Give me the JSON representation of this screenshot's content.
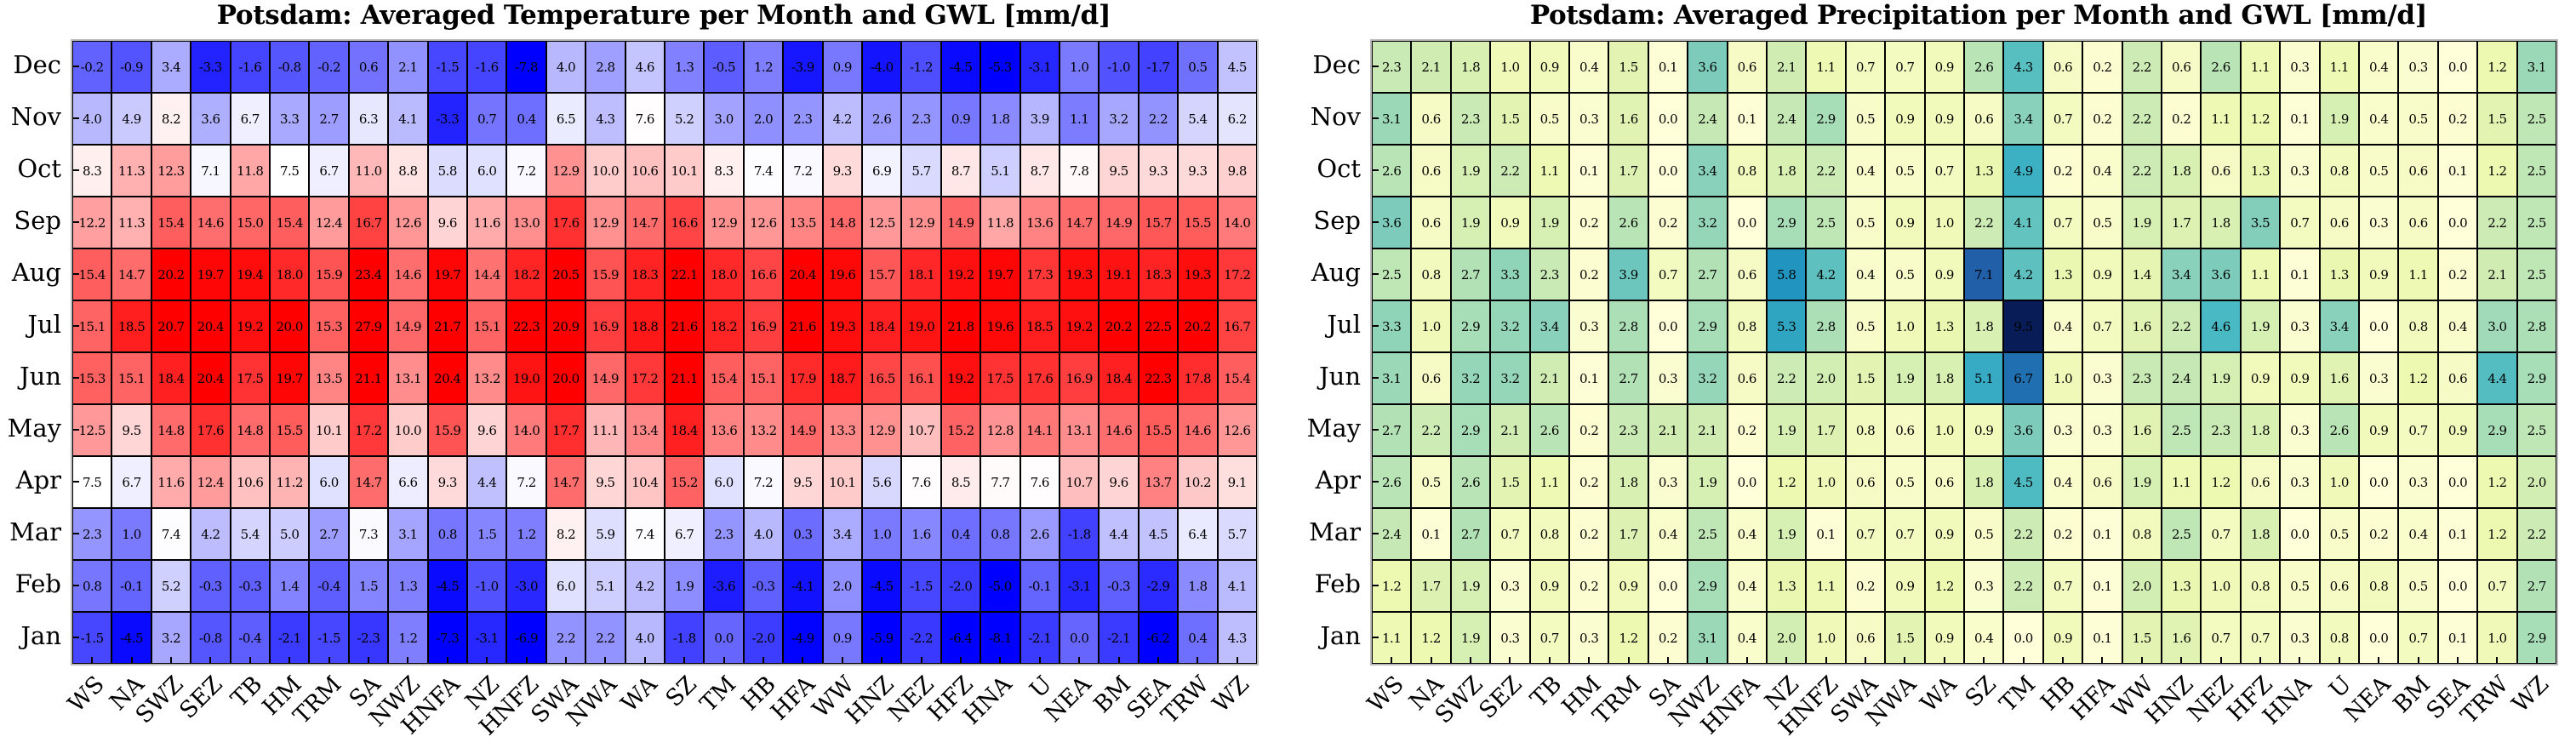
{
  "chart_data": [
    {
      "type": "heatmap",
      "title": "Potsdam: Averaged Temperature per Month and GWL [mm/d]",
      "colormap": "bwr",
      "x_categories": [
        "WS",
        "NA",
        "SWZ",
        "SEZ",
        "TB",
        "HM",
        "TRM",
        "SA",
        "NWZ",
        "HNFA",
        "NZ",
        "HNFZ",
        "SWA",
        "NWA",
        "WA",
        "SZ",
        "TM",
        "HB",
        "HFA",
        "WW",
        "HNZ",
        "NEZ",
        "HFZ",
        "HNA",
        "U",
        "NEA",
        "BM",
        "SEA",
        "TRW",
        "WZ"
      ],
      "y_categories": [
        "Dec",
        "Nov",
        "Oct",
        "Sep",
        "Aug",
        "Jul",
        "Jun",
        "May",
        "Apr",
        "Mar",
        "Feb",
        "Jan"
      ],
      "values": [
        [
          -0.2,
          -0.9,
          3.4,
          -3.3,
          -1.6,
          -0.8,
          -0.2,
          0.6,
          2.1,
          -1.5,
          -1.6,
          -7.8,
          4.0,
          2.8,
          4.6,
          1.3,
          -0.5,
          1.2,
          -3.9,
          0.9,
          -4.0,
          -1.2,
          -4.5,
          -5.3,
          -3.1,
          1.0,
          -1.0,
          -1.7,
          0.5,
          4.5
        ],
        [
          4.0,
          4.9,
          8.2,
          3.6,
          6.7,
          3.3,
          2.7,
          6.3,
          4.1,
          -3.3,
          0.7,
          0.4,
          6.5,
          4.3,
          7.6,
          5.2,
          3.0,
          2.0,
          2.3,
          4.2,
          2.6,
          2.3,
          0.9,
          1.8,
          3.9,
          1.1,
          3.2,
          2.2,
          5.4,
          6.2
        ],
        [
          8.3,
          11.3,
          12.3,
          7.1,
          11.8,
          7.5,
          6.7,
          11.0,
          8.8,
          5.8,
          6.0,
          7.2,
          12.9,
          10.0,
          10.6,
          10.1,
          8.3,
          7.4,
          7.2,
          9.3,
          6.9,
          5.7,
          8.7,
          5.1,
          8.7,
          7.8,
          9.5,
          9.3,
          9.3,
          9.8
        ],
        [
          12.2,
          11.3,
          15.4,
          14.6,
          15.0,
          15.4,
          12.4,
          16.7,
          12.6,
          9.6,
          11.6,
          13.0,
          17.6,
          12.9,
          14.7,
          16.6,
          12.9,
          12.6,
          13.5,
          14.8,
          12.5,
          12.9,
          14.9,
          11.8,
          13.6,
          14.7,
          14.9,
          15.7,
          15.5,
          14.0
        ],
        [
          15.4,
          14.7,
          20.2,
          19.7,
          19.4,
          18.0,
          15.9,
          23.4,
          14.6,
          19.7,
          14.4,
          18.2,
          20.5,
          15.9,
          18.3,
          22.1,
          18.0,
          16.6,
          20.4,
          19.6,
          15.7,
          18.1,
          19.2,
          19.7,
          17.3,
          19.3,
          19.1,
          18.3,
          19.3,
          17.2
        ],
        [
          15.1,
          18.5,
          20.7,
          20.4,
          19.2,
          20.0,
          15.3,
          27.9,
          14.9,
          21.7,
          15.1,
          22.3,
          20.9,
          16.9,
          18.8,
          21.6,
          18.2,
          16.9,
          21.6,
          19.3,
          18.4,
          19.0,
          21.8,
          19.6,
          18.5,
          19.2,
          20.2,
          22.5,
          20.2,
          16.7
        ],
        [
          15.3,
          15.1,
          18.4,
          20.4,
          17.5,
          19.7,
          13.5,
          21.1,
          13.1,
          20.4,
          13.2,
          19.0,
          20.0,
          14.9,
          17.2,
          21.1,
          15.4,
          15.1,
          17.9,
          18.7,
          16.5,
          16.1,
          19.2,
          17.5,
          17.6,
          16.9,
          18.4,
          22.3,
          17.8,
          15.4
        ],
        [
          12.5,
          9.5,
          14.8,
          17.6,
          14.8,
          15.5,
          10.1,
          17.2,
          10.0,
          15.9,
          9.6,
          14.0,
          17.7,
          11.1,
          13.4,
          18.4,
          13.6,
          13.2,
          14.9,
          13.3,
          12.9,
          10.7,
          15.2,
          12.8,
          14.1,
          13.1,
          14.6,
          15.5,
          14.6,
          12.6
        ],
        [
          7.5,
          6.7,
          11.6,
          12.4,
          10.6,
          11.2,
          6.0,
          14.7,
          6.6,
          9.3,
          4.4,
          7.2,
          14.7,
          9.5,
          10.4,
          15.2,
          6.0,
          7.2,
          9.5,
          10.1,
          5.6,
          7.6,
          8.5,
          7.7,
          7.6,
          10.7,
          9.6,
          13.7,
          10.2,
          9.1
        ],
        [
          2.3,
          1.0,
          7.4,
          4.2,
          5.4,
          5.0,
          2.7,
          7.3,
          3.1,
          0.8,
          1.5,
          1.2,
          8.2,
          5.9,
          7.4,
          6.7,
          2.3,
          4.0,
          0.3,
          3.4,
          1.0,
          1.6,
          0.4,
          0.8,
          2.6,
          -1.8,
          4.4,
          4.5,
          6.4,
          5.7
        ],
        [
          0.8,
          -0.1,
          5.2,
          -0.3,
          -0.3,
          1.4,
          -0.4,
          1.5,
          1.3,
          -4.5,
          -1.0,
          -3.0,
          6.0,
          5.1,
          4.2,
          1.9,
          -3.6,
          -0.3,
          -4.1,
          2.0,
          -4.5,
          -1.5,
          -2.0,
          -5.0,
          -0.1,
          -3.1,
          -0.3,
          -2.9,
          1.8,
          4.1
        ],
        [
          -1.5,
          -4.5,
          3.2,
          -0.8,
          -0.4,
          -2.1,
          -1.5,
          -2.3,
          1.2,
          -7.3,
          -3.1,
          -6.9,
          2.2,
          2.2,
          4.0,
          -1.8,
          0.0,
          -2.0,
          -4.9,
          0.9,
          -5.9,
          -2.2,
          -6.4,
          -8.1,
          -2.1,
          0.0,
          -2.1,
          -6.2,
          0.4,
          4.3
        ]
      ]
    },
    {
      "type": "heatmap",
      "title": "Potsdam: Averaged Precipitation per Month and GWL [mm/d]",
      "colormap": "YlGnBu",
      "x_categories": [
        "WS",
        "NA",
        "SWZ",
        "SEZ",
        "TB",
        "HM",
        "TRM",
        "SA",
        "NWZ",
        "HNFA",
        "NZ",
        "HNFZ",
        "SWA",
        "NWA",
        "WA",
        "SZ",
        "TM",
        "HB",
        "HFA",
        "WW",
        "HNZ",
        "NEZ",
        "HFZ",
        "HNA",
        "U",
        "NEA",
        "BM",
        "SEA",
        "TRW",
        "WZ"
      ],
      "y_categories": [
        "Dec",
        "Nov",
        "Oct",
        "Sep",
        "Aug",
        "Jul",
        "Jun",
        "May",
        "Apr",
        "Mar",
        "Feb",
        "Jan"
      ],
      "values": [
        [
          2.3,
          2.1,
          1.8,
          1.0,
          0.9,
          0.4,
          1.5,
          0.1,
          3.6,
          0.6,
          2.1,
          1.1,
          0.7,
          0.7,
          0.9,
          2.6,
          4.3,
          0.6,
          0.2,
          2.2,
          0.6,
          2.6,
          1.1,
          0.3,
          1.1,
          0.4,
          0.3,
          0.0,
          1.2,
          3.1
        ],
        [
          3.1,
          0.6,
          2.3,
          1.5,
          0.5,
          0.3,
          1.6,
          0.0,
          2.4,
          0.1,
          2.4,
          2.9,
          0.5,
          0.9,
          0.9,
          0.6,
          3.4,
          0.7,
          0.2,
          2.2,
          0.2,
          1.1,
          1.2,
          0.1,
          1.9,
          0.4,
          0.5,
          0.2,
          1.5,
          2.5
        ],
        [
          2.6,
          0.6,
          1.9,
          2.2,
          1.1,
          0.1,
          1.7,
          0.0,
          3.4,
          0.8,
          1.8,
          2.2,
          0.4,
          0.5,
          0.7,
          1.3,
          4.9,
          0.2,
          0.4,
          2.2,
          1.8,
          0.6,
          1.3,
          0.3,
          0.8,
          0.5,
          0.6,
          0.1,
          1.2,
          2.5
        ],
        [
          3.6,
          0.6,
          1.9,
          0.9,
          1.9,
          0.2,
          2.6,
          0.2,
          3.2,
          0.0,
          2.9,
          2.5,
          0.5,
          0.9,
          1.0,
          2.2,
          4.1,
          0.7,
          0.5,
          1.9,
          1.7,
          1.8,
          3.5,
          0.7,
          0.6,
          0.3,
          0.6,
          0.0,
          2.2,
          2.5
        ],
        [
          2.5,
          0.8,
          2.7,
          3.3,
          2.3,
          0.2,
          3.9,
          0.7,
          2.7,
          0.6,
          5.8,
          4.2,
          0.4,
          0.5,
          0.9,
          7.1,
          4.2,
          1.3,
          0.9,
          1.4,
          3.4,
          3.6,
          1.1,
          0.1,
          1.3,
          0.9,
          1.1,
          0.2,
          2.1,
          2.5
        ],
        [
          3.3,
          1.0,
          2.9,
          3.2,
          3.4,
          0.3,
          2.8,
          0.0,
          2.9,
          0.8,
          5.3,
          2.8,
          0.5,
          1.0,
          1.3,
          1.8,
          9.5,
          0.4,
          0.7,
          1.6,
          2.2,
          4.6,
          1.9,
          0.3,
          3.4,
          0.0,
          0.8,
          0.4,
          3.0,
          2.8
        ],
        [
          3.1,
          0.6,
          3.2,
          3.2,
          2.1,
          0.1,
          2.7,
          0.3,
          3.2,
          0.6,
          2.2,
          2.0,
          1.5,
          1.9,
          1.8,
          5.1,
          6.7,
          1.0,
          0.3,
          2.3,
          2.4,
          1.9,
          0.9,
          0.9,
          1.6,
          0.3,
          1.2,
          0.6,
          4.4,
          2.9
        ],
        [
          2.7,
          2.2,
          2.9,
          2.1,
          2.6,
          0.2,
          2.3,
          2.1,
          2.1,
          0.2,
          1.9,
          1.7,
          0.8,
          0.6,
          1.0,
          0.9,
          3.6,
          0.3,
          0.3,
          1.6,
          2.5,
          2.3,
          1.8,
          0.3,
          2.6,
          0.9,
          0.7,
          0.9,
          2.9,
          2.5
        ],
        [
          2.6,
          0.5,
          2.6,
          1.5,
          1.1,
          0.2,
          1.8,
          0.3,
          1.9,
          0.0,
          1.2,
          1.0,
          0.6,
          0.5,
          0.6,
          1.8,
          4.5,
          0.4,
          0.6,
          1.9,
          1.1,
          1.2,
          0.6,
          0.3,
          1.0,
          0.0,
          0.3,
          0.0,
          1.2,
          2.0
        ],
        [
          2.4,
          0.1,
          2.7,
          0.7,
          0.8,
          0.2,
          1.7,
          0.4,
          2.5,
          0.4,
          1.9,
          0.1,
          0.7,
          0.7,
          0.9,
          0.5,
          2.2,
          0.2,
          0.1,
          0.8,
          2.5,
          0.7,
          1.8,
          0.0,
          0.5,
          0.2,
          0.4,
          0.1,
          1.2,
          2.2
        ],
        [
          1.2,
          1.7,
          1.9,
          0.3,
          0.9,
          0.2,
          0.9,
          0.0,
          2.9,
          0.4,
          1.3,
          1.1,
          0.2,
          0.9,
          1.2,
          0.3,
          2.2,
          0.7,
          0.1,
          2.0,
          1.3,
          1.0,
          0.8,
          0.5,
          0.6,
          0.8,
          0.5,
          0.0,
          0.7,
          2.7
        ],
        [
          1.1,
          1.2,
          1.9,
          0.3,
          0.7,
          0.3,
          1.2,
          0.2,
          3.1,
          0.4,
          2.0,
          1.0,
          0.6,
          1.5,
          0.9,
          0.4,
          0.0,
          0.9,
          0.1,
          1.5,
          1.6,
          0.7,
          0.7,
          0.3,
          0.8,
          0.0,
          0.7,
          0.1,
          1.0,
          2.9
        ]
      ]
    }
  ]
}
